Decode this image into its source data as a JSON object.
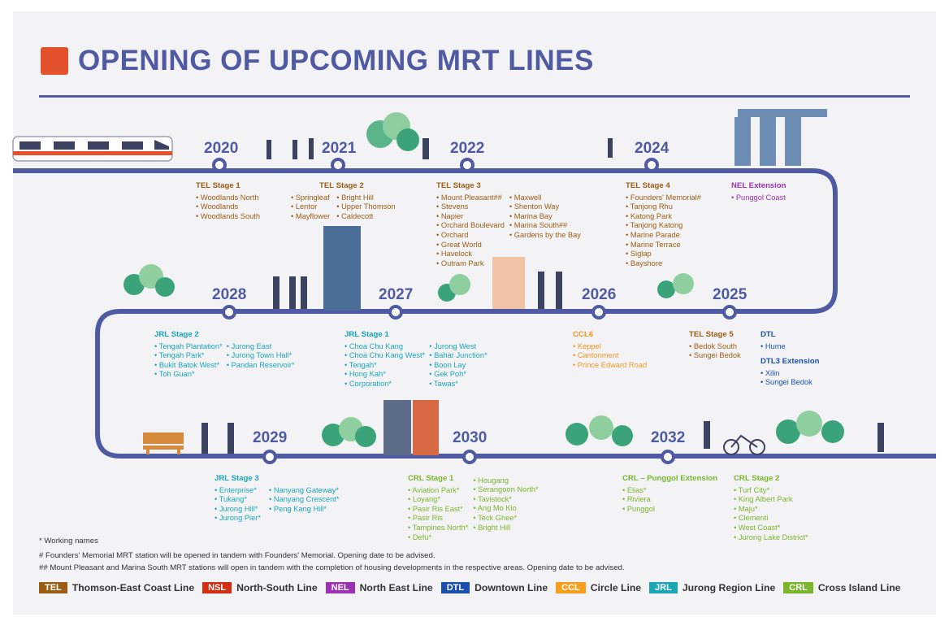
{
  "title": "OPENING OF UPCOMING MRT LINES",
  "years": [
    "2020",
    "2021",
    "2022",
    "2024",
    "2025",
    "2026",
    "2027",
    "2028",
    "2029",
    "2030",
    "2032"
  ],
  "groups": {
    "tel1": {
      "heading": "TEL Stage 1",
      "items": [
        "Woodlands North",
        "Woodlands",
        "Woodlands South"
      ]
    },
    "tel2": {
      "heading": "TEL Stage 2",
      "col1": [
        "Springleaf",
        "Lentor",
        "Mayflower"
      ],
      "col2": [
        "Bright Hill",
        "Upper Thomson",
        "Caldecott"
      ]
    },
    "tel3": {
      "heading": "TEL Stage 3",
      "col1": [
        "Mount Pleasant##",
        "Stevens",
        "Napier",
        "Orchard Boulevard",
        "Orchard",
        "Great World",
        "Havelock",
        "Outram Park"
      ],
      "col2": [
        "Maxwell",
        "Shenton Way",
        "Marina Bay",
        "Marina South##",
        "Gardens by the Bay"
      ]
    },
    "tel4": {
      "heading": "TEL Stage 4",
      "items": [
        "Founders' Memorial#",
        "Tanjong Rhu",
        "Katong Park",
        "Tanjong Katong",
        "Marine Parade",
        "Marine Terrace",
        "Siglap",
        "Bayshore"
      ]
    },
    "nelext": {
      "heading": "NEL Extension",
      "items": [
        "Punggol Coast"
      ]
    },
    "tel5": {
      "heading": "TEL Stage 5",
      "items": [
        "Bedok South",
        "Sungei Bedok"
      ]
    },
    "dtl": {
      "heading": "DTL",
      "items": [
        "Hume"
      ]
    },
    "dtl3": {
      "heading": "DTL3 Extension",
      "items": [
        "Xilin",
        "Sungei Bedok"
      ]
    },
    "ccl6": {
      "heading": "CCL6",
      "items": [
        "Keppel",
        "Cantonment",
        "Prince Edward Road"
      ]
    },
    "jrl1": {
      "heading": "JRL Stage 1",
      "col1": [
        "Choa Chu Kang",
        "Choa Chu Kang West*",
        "Tengah*",
        "Hong Kah*",
        "Corporation*"
      ],
      "col2": [
        "Jurong West",
        "Bahar Junction*",
        "Boon Lay",
        "Gek Poh*",
        "Tawas*"
      ]
    },
    "jrl2": {
      "heading": "JRL Stage 2",
      "col1": [
        "Tengah Plantation*",
        "Tengah Park*",
        "Bukit Batok West*",
        "Toh Guan*"
      ],
      "col2": [
        "Jurong East",
        "Jurong Town Hall*",
        "Pandan Reservoir*"
      ]
    },
    "jrl3": {
      "heading": "JRL Stage 3",
      "col1": [
        "Enterprise*",
        "Tukang*",
        "Jurong Hill*",
        "Jurong Pier*"
      ],
      "col2": [
        "Nanyang Gateway*",
        "Nanyang Crescent*",
        "Peng Kang Hill*"
      ]
    },
    "crl1": {
      "heading": "CRL Stage 1",
      "col1": [
        "Aviation Park*",
        "Loyang*",
        "Pasir Ris East*",
        "Pasir Ris",
        "Tampines North*",
        "Defu*"
      ],
      "col2": [
        "Hougang",
        "Serangoon North*",
        "Tavistock*",
        "Ang Mo Kio",
        "Teck Ghee*",
        "Bright Hill"
      ]
    },
    "crlpe": {
      "heading": "CRL – Punggol Extension",
      "items": [
        "Elias*",
        "Riviera",
        "Punggol"
      ]
    },
    "crl2": {
      "heading": "CRL Stage 2",
      "items": [
        "Turf City*",
        "King Albert Park",
        "Maju*",
        "Clementi",
        "West Coast*",
        "Jurong Lake District*"
      ]
    }
  },
  "notes": [
    "* Working names",
    "# Founders' Memorial MRT station will be opened in tandem with Founders' Memorial. Opening date to be advised.",
    "## Mount Pleasant and Marina South MRT stations will open in tandem with the completion of housing developments in the respective areas. Opening date to be advised."
  ],
  "legend": [
    {
      "code": "TEL",
      "name": "Thomson-East Coast Line",
      "color": "#9b5d14"
    },
    {
      "code": "NSL",
      "name": "North-South Line",
      "color": "#d42e12"
    },
    {
      "code": "NEL",
      "name": "North East Line",
      "color": "#9b32b4"
    },
    {
      "code": "DTL",
      "name": "Downtown Line",
      "color": "#1b4fae"
    },
    {
      "code": "CCL",
      "name": "Circle Line",
      "color": "#f99d1c"
    },
    {
      "code": "JRL",
      "name": "Jurong Region Line",
      "color": "#1aa6b7"
    },
    {
      "code": "CRL",
      "name": "Cross Island Line",
      "color": "#7bb52b"
    }
  ],
  "colors": {
    "track": "#4f5aa2",
    "logo": "#e3512a",
    "tree": "#3aa37a"
  },
  "icons": [
    "train-icon",
    "tree-icon",
    "building-icon",
    "person-icon",
    "bench-icon",
    "bicycle-icon",
    "gardens-by-the-bay-icon",
    "marina-bay-sands-icon"
  ]
}
